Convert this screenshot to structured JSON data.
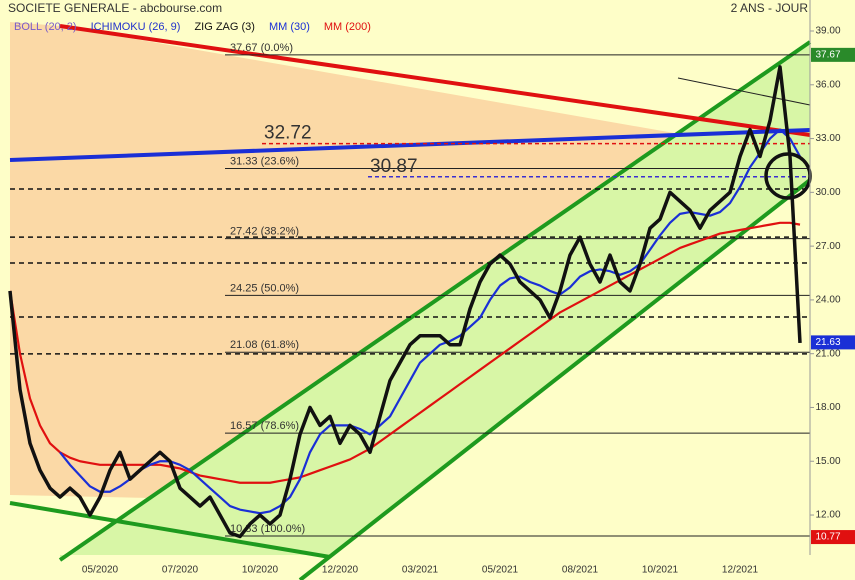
{
  "chart_data": {
    "type": "line",
    "title": "SOCIETE GENERALE - abcbourse.com",
    "period": "2 ANS - JOUR",
    "indicators": [
      {
        "name": "BOLL (20, 2)",
        "color": "#7a5cc8"
      },
      {
        "name": "ICHIMOKU (26, 9)",
        "color": "#2233cc"
      }
    ],
    "categories": [
      null,
      null,
      null,
      null,
      null,
      null,
      null,
      null,
      null,
      "05/2020",
      null,
      null,
      null,
      null,
      null,
      null,
      null,
      "07/2020",
      null,
      null,
      null,
      null,
      null,
      null,
      null,
      "10/2020",
      null,
      null,
      null,
      null,
      null,
      null,
      null,
      "12/2020",
      null,
      null,
      null,
      null,
      null,
      null,
      null,
      "03/2021",
      null,
      null,
      null,
      null,
      null,
      null,
      null,
      "05/2021",
      null,
      null,
      null,
      null,
      null,
      null,
      null,
      "08/2021",
      null,
      null,
      null,
      null,
      null,
      null,
      null,
      "10/2021",
      null,
      null,
      null,
      null,
      null,
      null,
      null,
      "12/2021",
      null,
      null,
      null,
      null,
      null,
      null
    ],
    "series": [
      {
        "name": "ZIG ZAG (3)",
        "color": "#111111",
        "width": 3.5,
        "values": [
          24.5,
          19,
          16,
          14.5,
          13.5,
          13,
          13.5,
          13,
          12,
          13,
          14.5,
          15.5,
          14,
          14.5,
          15,
          15.5,
          15,
          13.5,
          13,
          12.5,
          13,
          12,
          11,
          10.8,
          11.5,
          12,
          11.5,
          12,
          14,
          16.5,
          18,
          17,
          17.5,
          16,
          17,
          16.5,
          15.5,
          17.5,
          19.5,
          20.5,
          21.5,
          22,
          22,
          22,
          21.5,
          21.5,
          23.5,
          25,
          26,
          26.5,
          26,
          25,
          24.5,
          24,
          23,
          24.5,
          26.5,
          27.5,
          26,
          25,
          26.5,
          25,
          24.5,
          26,
          28,
          28.5,
          30,
          29.5,
          29,
          28,
          29,
          29.5,
          30,
          32,
          33.5,
          32,
          34,
          37,
          32,
          21.6
        ]
      },
      {
        "name": "MM (30)",
        "color": "#1a2fd6",
        "width": 2.2,
        "values": [
          null,
          null,
          null,
          null,
          null,
          15.5,
          14.8,
          14.2,
          13.6,
          13.3,
          13.3,
          13.6,
          14,
          14.5,
          14.8,
          15,
          15,
          14.8,
          14.5,
          14,
          13.5,
          13,
          12.5,
          12.3,
          12.2,
          12.1,
          12.2,
          12.5,
          13,
          14,
          15.5,
          16.5,
          17,
          17,
          17,
          16.8,
          16.5,
          17,
          17.5,
          18.5,
          19.5,
          20.5,
          21,
          21.5,
          21.7,
          22,
          22.5,
          23,
          24,
          24.8,
          25.2,
          25.3,
          25,
          24.8,
          24.5,
          24.3,
          24.7,
          25.3,
          25.6,
          25.7,
          25.6,
          25.4,
          25.6,
          26,
          26.8,
          27.6,
          28.3,
          28.8,
          28.9,
          28.8,
          28.7,
          28.9,
          29.4,
          30.3,
          31.4,
          32.2,
          33,
          33.5,
          33,
          32
        ]
      },
      {
        "name": "MM (200)",
        "color": "#e01010",
        "width": 2.2,
        "values": [
          24.5,
          21,
          18.5,
          17,
          16,
          15.5,
          15.2,
          15,
          14.9,
          14.8,
          14.8,
          14.8,
          14.8,
          14.8,
          14.8,
          14.8,
          14.7,
          14.6,
          14.4,
          14.2,
          14.1,
          14,
          13.9,
          13.8,
          13.8,
          13.8,
          13.8,
          13.9,
          14,
          14.1,
          14.3,
          14.5,
          14.7,
          14.9,
          15.1,
          15.4,
          15.7,
          16.1,
          16.5,
          16.9,
          17.3,
          17.7,
          18.1,
          18.5,
          18.9,
          19.3,
          19.7,
          20.1,
          20.5,
          20.9,
          21.3,
          21.7,
          22.1,
          22.5,
          22.9,
          23.3,
          23.6,
          23.9,
          24.2,
          24.5,
          24.8,
          25.1,
          25.4,
          25.7,
          26,
          26.3,
          26.6,
          26.9,
          27.1,
          27.3,
          27.5,
          27.7,
          27.8,
          27.9,
          28,
          28.1,
          28.2,
          28.3,
          28.3,
          28.2
        ]
      }
    ],
    "ylim": [
      9.77,
      40.73
    ],
    "yticks": [
      {
        "value": 12,
        "label": "12.00"
      },
      {
        "value": 15,
        "label": "15.00"
      },
      {
        "value": 18,
        "label": "18.00"
      },
      {
        "value": 21,
        "label": "21.00"
      },
      {
        "value": 24,
        "label": "24.00"
      },
      {
        "value": 27,
        "label": "27.00"
      },
      {
        "value": 30,
        "label": "30.00"
      },
      {
        "value": 33,
        "label": "33.00"
      },
      {
        "value": 36,
        "label": "36.00"
      },
      {
        "value": 39,
        "label": "39.00"
      }
    ],
    "fib_levels": [
      {
        "value": 37.67,
        "label": "37.67  (0.0%)"
      },
      {
        "value": 31.33,
        "label": "31.33  (23.6%)"
      },
      {
        "value": 27.42,
        "label": "27.42  (38.2%)"
      },
      {
        "value": 24.25,
        "label": "24.25  (50.0%)"
      },
      {
        "value": 21.08,
        "label": "21.08  (61.8%)"
      },
      {
        "value": 16.57,
        "label": "16.57  (78.6%)"
      },
      {
        "value": 10.83,
        "label": "10.83  (100.0%)"
      }
    ],
    "annotations": [
      {
        "value": 32.72,
        "color": "#e01010"
      },
      {
        "value": 30.87,
        "color": "#3a2fd0"
      }
    ],
    "levels": [
      30.19,
      27.5,
      26.06,
      23.05,
      20.99
    ],
    "axis_tags": [
      {
        "value": 37.67,
        "color": "#2a8a2a"
      },
      {
        "value": 21.63,
        "color": "#1a2fd6"
      },
      {
        "value": 10.77,
        "color": "#e01010"
      }
    ]
  }
}
